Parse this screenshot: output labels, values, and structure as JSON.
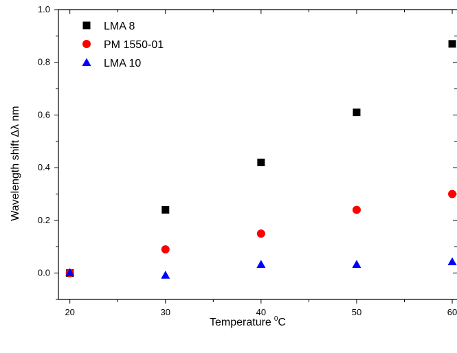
{
  "chart_data": {
    "type": "scatter",
    "xlabel": "Temperature",
    "xlabel_unit_sup": "0",
    "xlabel_unit": "C",
    "ylabel": "Wavelength shift Δλ nm",
    "xlim": [
      18.8,
      60.5
    ],
    "ylim": [
      -0.1,
      1.0
    ],
    "xticks": [
      20,
      30,
      40,
      50,
      60
    ],
    "xtick_labels": [
      "20",
      "30",
      "40",
      "50",
      "60"
    ],
    "yticks": [
      0.0,
      0.2,
      0.4,
      0.6,
      0.8,
      1.0
    ],
    "ytick_labels": [
      "0.0",
      "0.2",
      "0.4",
      "0.6",
      "0.8",
      "1.0"
    ],
    "legend_position": "top-left",
    "grid": false,
    "series": [
      {
        "name": "LMA 8",
        "marker": "square",
        "color": "#000000",
        "x": [
          20,
          30,
          40,
          50,
          60
        ],
        "y": [
          0.0,
          0.24,
          0.42,
          0.61,
          0.87
        ]
      },
      {
        "name": "PM 1550-01",
        "marker": "circle",
        "color": "#ff0000",
        "x": [
          20,
          30,
          40,
          50,
          60
        ],
        "y": [
          0.0,
          0.09,
          0.15,
          0.24,
          0.3
        ]
      },
      {
        "name": "LMA 10",
        "marker": "triangle",
        "color": "#0000ff",
        "x": [
          20,
          30,
          40,
          50,
          60
        ],
        "y": [
          0.002,
          -0.008,
          0.033,
          0.033,
          0.043
        ]
      }
    ]
  }
}
